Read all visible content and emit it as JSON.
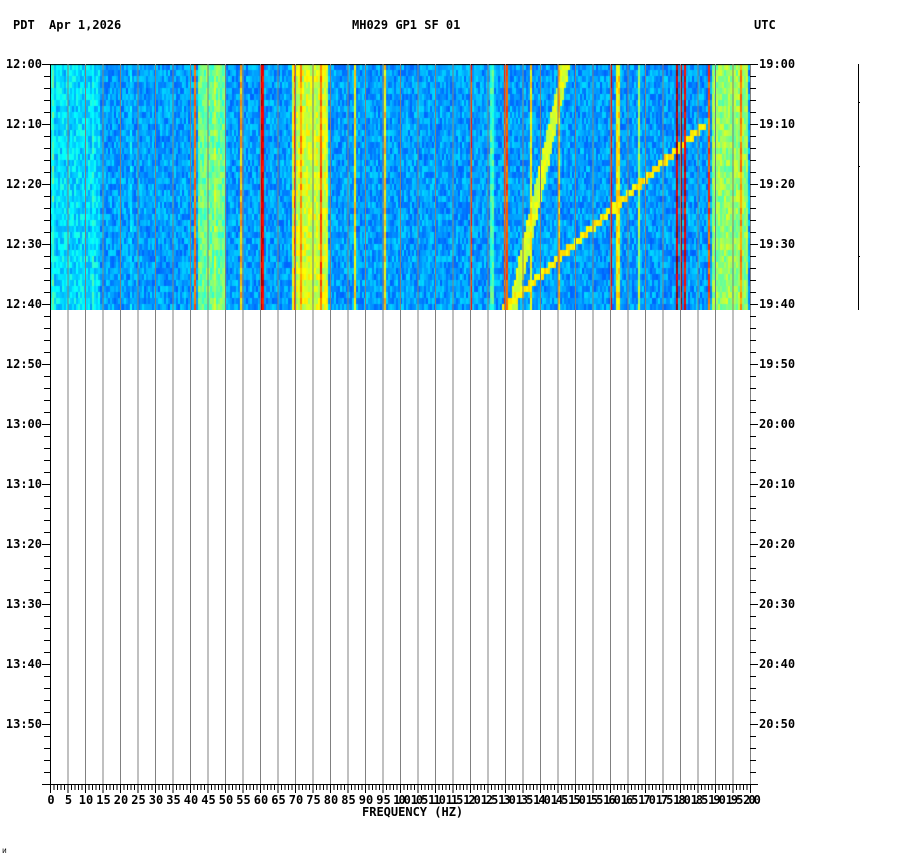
{
  "header": {
    "left_tz": "PDT",
    "date": "Apr 1,2026",
    "station": "MH029 GP1 SF 01",
    "right_tz": "UTC"
  },
  "footer_mark": "ᴎ",
  "chart_data": {
    "type": "heatmap",
    "title": "MH029 GP1 SF 01",
    "subtitle": "Apr 1,2026",
    "xlabel": "FREQUENCY (HZ)",
    "ylabel_left": "PDT",
    "ylabel_right": "UTC",
    "xlim": [
      0,
      200
    ],
    "x_ticks": [
      0,
      5,
      10,
      15,
      20,
      25,
      30,
      35,
      40,
      45,
      50,
      55,
      60,
      65,
      70,
      75,
      80,
      85,
      90,
      95,
      100,
      105,
      110,
      115,
      120,
      125,
      130,
      135,
      140,
      145,
      150,
      155,
      160,
      165,
      170,
      175,
      180,
      185,
      190,
      195,
      200
    ],
    "x_tick_labels": [
      "0",
      "5",
      "10",
      "15",
      "20",
      "25",
      "30",
      "35",
      "40",
      "45",
      "50",
      "55",
      "60",
      "65",
      "70",
      "75",
      "80",
      "85",
      "90",
      "95",
      "100",
      "105",
      "110",
      "115",
      "120",
      "125",
      "130",
      "135",
      "140",
      "145",
      "150",
      "155",
      "160",
      "165",
      "170",
      "175",
      "180",
      "185",
      "190",
      "195",
      "200"
    ],
    "y_ticks_left": [
      "12:00",
      "12:10",
      "12:20",
      "12:30",
      "12:40",
      "12:50",
      "13:00",
      "13:10",
      "13:20",
      "13:30",
      "13:40",
      "13:50"
    ],
    "y_ticks_right": [
      "19:00",
      "19:10",
      "19:20",
      "19:30",
      "19:40",
      "19:50",
      "20:00",
      "20:10",
      "20:20",
      "20:30",
      "20:40",
      "20:50"
    ],
    "time_range_total_minutes": 120,
    "data_filled_minutes": 41,
    "grid": "vertical every 5 Hz",
    "colormap": "jet (blue low → red high)",
    "background_level": 0.28,
    "broad_bands": [
      {
        "from_hz": 42,
        "to_hz": 50,
        "level": 0.48
      },
      {
        "from_hz": 69,
        "to_hz": 79,
        "level": 0.58
      },
      {
        "from_hz": 189,
        "to_hz": 199,
        "level": 0.52
      },
      {
        "from_hz": 0,
        "to_hz": 14,
        "level": 0.34
      }
    ],
    "narrow_lines": [
      {
        "hz": 0.5,
        "level": 0.5
      },
      {
        "hz": 12,
        "level": 0.45
      },
      {
        "hz": 23,
        "level": 0.4
      },
      {
        "hz": 41,
        "level": 0.82
      },
      {
        "hz": 47,
        "level": 0.6
      },
      {
        "hz": 54.5,
        "level": 0.75
      },
      {
        "hz": 60,
        "level": 0.98
      },
      {
        "hz": 60.7,
        "level": 0.95
      },
      {
        "hz": 69.5,
        "level": 0.85
      },
      {
        "hz": 71.5,
        "level": 0.78
      },
      {
        "hz": 77,
        "level": 0.85
      },
      {
        "hz": 87,
        "level": 0.7
      },
      {
        "hz": 95.5,
        "level": 0.72
      },
      {
        "hz": 120,
        "level": 0.88
      },
      {
        "hz": 126,
        "level": 0.5
      },
      {
        "hz": 130,
        "level": 0.85
      },
      {
        "hz": 137,
        "level": 0.7
      },
      {
        "hz": 145,
        "level": 0.75
      },
      {
        "hz": 160,
        "level": 0.92
      },
      {
        "hz": 162,
        "level": 0.7
      },
      {
        "hz": 168,
        "level": 0.6
      },
      {
        "hz": 179,
        "level": 1.0
      },
      {
        "hz": 180,
        "level": 1.0
      },
      {
        "hz": 181,
        "level": 0.95
      },
      {
        "hz": 188,
        "level": 0.85
      },
      {
        "hz": 197,
        "level": 0.8
      }
    ],
    "chirp": {
      "start_hz": 132,
      "start_min": 40,
      "end_hz": 147,
      "end_min": 0,
      "level": 0.55,
      "note": "diagonal tone drifting across 12:00-12:40"
    },
    "chirp2": {
      "start_hz": 130,
      "start_min": 40,
      "end_hz": 186,
      "end_min": 10,
      "level": 0.6
    },
    "horizontal_event": {
      "minute": 30.5,
      "from_hz": 160,
      "to_hz": 190,
      "level": 0.7
    }
  }
}
